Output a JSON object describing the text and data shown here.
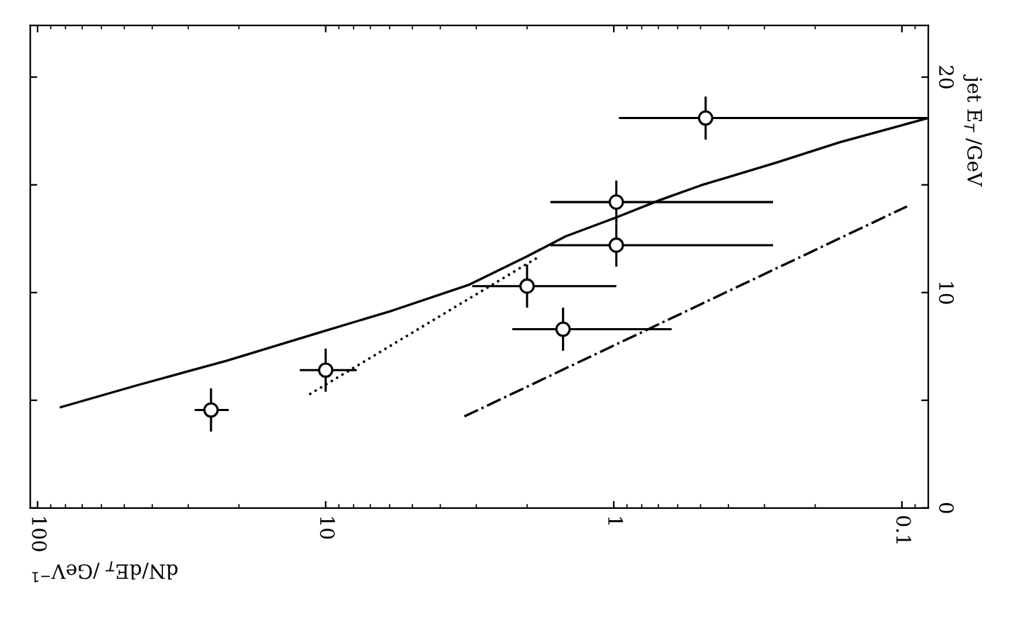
{
  "chart_data": {
    "type": "scatter",
    "xlabel": "dN/dE$_{T}$ /GeV$^{−1}$",
    "ylabel": "jet E$_{T}$ /GeV",
    "log": "x",
    "xlim": [
      106,
      0.081
    ],
    "xticks": [
      100,
      10,
      1,
      0.1
    ],
    "ylim": [
      0,
      22.4
    ],
    "yticks": [
      0,
      {
        "value": 5,
        "label": null
      },
      10,
      {
        "value": 15,
        "label": null
      },
      20
    ],
    "grid": false,
    "series": [
      {
        "color": "#000000",
        "marker": "circle",
        "x": [
          25,
          10,
          2.0,
          1.5,
          0.98,
          0.98,
          0.48
        ],
        "values": [
          4.55,
          6.4,
          10.3,
          8.3,
          14.2,
          12.2,
          18.1
        ],
        "xerrors": [
          [
            21.7,
            28.5
          ],
          [
            7.8,
            12.3
          ],
          [
            0.98,
            3.1
          ],
          [
            0.63,
            2.25
          ],
          [
            0.28,
            1.66
          ],
          [
            0.28,
            1.66
          ],
          [
            0.081,
            0.96
          ]
        ],
        "errors": [
          1.0,
          1.0,
          1.0,
          1.0,
          1.0,
          1.0,
          1.0
        ]
      },
      {
        "type": "line",
        "color": "#000000",
        "marker": "none",
        "line_style": "solid",
        "x": [
          83,
          45,
          22,
          10.3,
          5.85,
          3.17,
          2.0,
          1.47,
          0.98,
          0.69,
          0.5,
          0.27,
          0.164,
          0.081
        ],
        "values": [
          4.68,
          5.7,
          6.84,
          8.18,
          9.17,
          10.37,
          11.68,
          12.61,
          13.49,
          14.3,
          14.97,
          16.05,
          16.98,
          18.1
        ]
      },
      {
        "type": "line",
        "color": "#000000",
        "marker": "none",
        "line_style": "dashdot",
        "x": [
          3.3,
          0.096
        ],
        "values": [
          4.25,
          14.0
        ]
      },
      {
        "type": "line",
        "color": "#000000",
        "marker": "none",
        "line_style": "dotted",
        "x": [
          11.4,
          1.81
        ],
        "values": [
          5.27,
          11.68
        ]
      }
    ]
  }
}
